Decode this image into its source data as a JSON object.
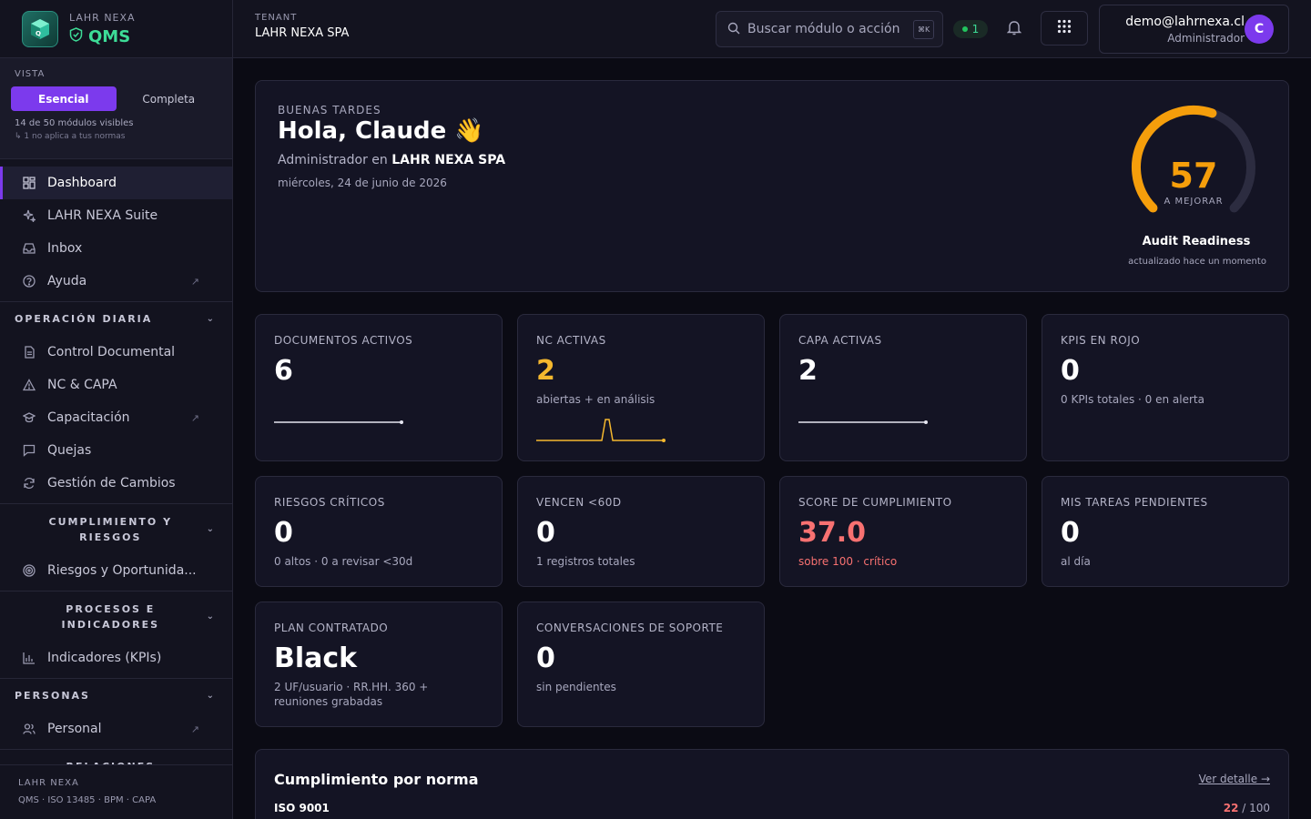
{
  "brand": {
    "small": "LAHR NEXA",
    "product": "QMS"
  },
  "vista": {
    "label": "VISTA",
    "options": [
      "Esencial",
      "Completa"
    ],
    "active": "Esencial",
    "info": "14 de 50 módulos visibles",
    "sub": "↳ 1 no aplica a tus normas"
  },
  "nav_top": [
    {
      "label": "Dashboard",
      "icon": "dashboard-icon"
    },
    {
      "label": "LAHR NEXA Suite",
      "icon": "sparkle-icon"
    },
    {
      "label": "Inbox",
      "icon": "inbox-icon"
    },
    {
      "label": "Ayuda",
      "icon": "help-icon"
    }
  ],
  "sections": [
    {
      "title": "OPERACIÓN DIARIA",
      "items": [
        "Control Documental",
        "NC & CAPA",
        "Capacitación",
        "Quejas",
        "Gestión de Cambios"
      ]
    },
    {
      "title_lines": [
        "CUMPLIMIENTO Y",
        "RIESGOS"
      ],
      "items": [
        "Riesgos y Oportunida..."
      ]
    },
    {
      "title_lines": [
        "PROCESOS E",
        "INDICADORES"
      ],
      "items": [
        "Indicadores (KPIs)"
      ]
    },
    {
      "title": "PERSONAS",
      "items": [
        "Personal"
      ]
    },
    {
      "title": "RELACIONES"
    }
  ],
  "sidebar_footer": {
    "brand": "LAHR NEXA",
    "tags": "QMS · ISO 13485 · BPM · CAPA"
  },
  "topbar": {
    "tenant_label": "TENANT",
    "tenant_name": "LAHR NEXA SPA",
    "search_placeholder": "Buscar módulo o acción",
    "search_kbd": "⌘K",
    "status_count": "1",
    "user_email": "demo@lahrnexa.cl",
    "user_role": "Administrador",
    "avatar_initial": "C"
  },
  "hero": {
    "greet_label": "BUENAS TARDES",
    "greeting": "Hola, Claude 👋",
    "role_prefix": "Administrador en ",
    "company": "LAHR NEXA SPA",
    "date": "miércoles, 24 de junio de 2026",
    "gauge_value": "57",
    "gauge_fraction": 0.57,
    "gauge_status": "A MEJORAR",
    "gauge_title": "Audit Readiness",
    "gauge_updated": "actualizado hace un momento"
  },
  "kpis": [
    {
      "label": "DOCUMENTOS ACTIVOS",
      "value": "6",
      "sub": ""
    },
    {
      "label": "NC ACTIVAS",
      "value": "2",
      "sub": "abiertas + en análisis"
    },
    {
      "label": "CAPA ACTIVAS",
      "value": "2",
      "sub": ""
    },
    {
      "label": "KPIS EN ROJO",
      "value": "0",
      "sub": "0 KPIs totales · 0 en alerta"
    },
    {
      "label": "RIESGOS CRÍTICOS",
      "value": "0",
      "sub": "0 altos · 0 a revisar <30d"
    },
    {
      "label": "VENCEN <60D",
      "value": "0",
      "sub": "1 registros totales"
    },
    {
      "label": "SCORE DE CUMPLIMIENTO",
      "value": "37.0",
      "sub": "sobre 100 · crítico"
    },
    {
      "label": "MIS TAREAS PENDIENTES",
      "value": "0",
      "sub": "al día"
    },
    {
      "label": "PLAN CONTRATADO",
      "value": "Black",
      "sub": "2 UF/usuario · RR.HH. 360 + reuniones grabadas"
    },
    {
      "label": "CONVERSACIONES DE SOPORTE",
      "value": "0",
      "sub": "sin pendientes"
    }
  ],
  "compliance": {
    "title": "Cumplimiento por norma",
    "link": "Ver detalle →",
    "standard": "ISO 9001",
    "score": "22",
    "score_max": " / 100"
  },
  "colors": {
    "accent": "#7c3aed",
    "amber": "#f59e0b",
    "critical": "#f87171",
    "success": "#3ddc97"
  }
}
